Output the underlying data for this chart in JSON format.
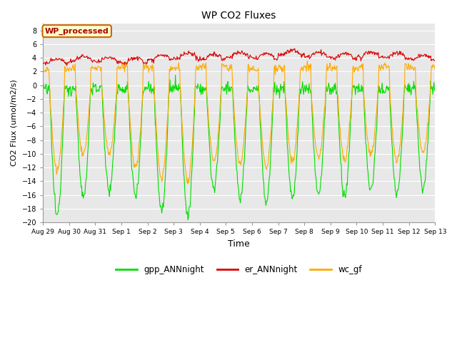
{
  "title": "WP CO2 Fluxes",
  "xlabel": "Time",
  "ylabel_display": "CO2 Flux (umol/m2/s)",
  "ylim": [
    -20,
    9
  ],
  "yticks": [
    -20,
    -18,
    -16,
    -14,
    -12,
    -10,
    -8,
    -6,
    -4,
    -2,
    0,
    2,
    4,
    6,
    8
  ],
  "fig_bg_color": "#ffffff",
  "plot_bg_color": "#e8e8e8",
  "grid_color": "#ffffff",
  "text_annotation": "WP_processed",
  "annotation_bg": "#ffffcc",
  "annotation_border": "#cc6600",
  "annotation_text_color": "#aa0000",
  "line_gpp_color": "#00dd00",
  "line_er_color": "#dd0000",
  "line_wc_color": "#ffaa00",
  "line_width": 0.8,
  "n_days": 15,
  "legend_labels": [
    "gpp_ANNnight",
    "er_ANNnight",
    "wc_gf"
  ],
  "x_tick_labels": [
    "Aug 29",
    "Aug 30",
    "Aug 31",
    "Sep 1",
    "Sep 2",
    "Sep 3",
    "Sep 4",
    "Sep 5",
    "Sep 6",
    "Sep 7",
    "Sep 8",
    "Sep 9",
    "Sep 10",
    "Sep 11",
    "Sep 12",
    "Sep 13"
  ],
  "points_per_day": 48
}
